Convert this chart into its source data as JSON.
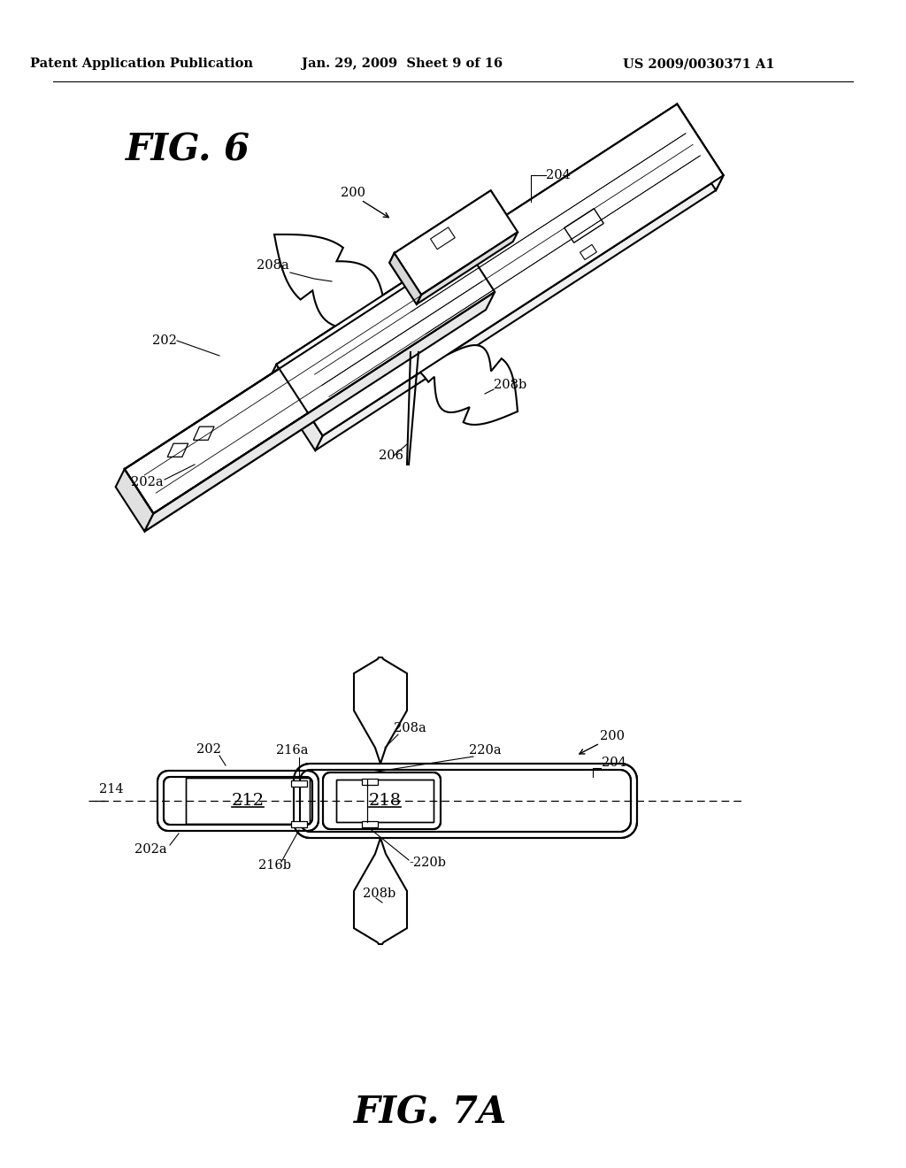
{
  "bg_color": "#ffffff",
  "line_color": "#000000",
  "header_left": "Patent Application Publication",
  "header_mid": "Jan. 29, 2009  Sheet 9 of 16",
  "header_right": "US 2009/0030371 A1",
  "fig6_title": "FIG. 6",
  "fig7a_title": "FIG. 7A"
}
